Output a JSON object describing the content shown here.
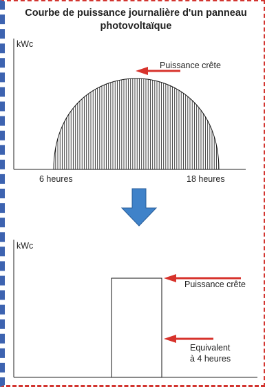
{
  "title": "Courbe de puissance journalière d'un panneau photovoltaïque",
  "chart_top": {
    "y_unit_label": "kWc",
    "peak_label": "Puissance crête",
    "x_start_label": "6 heures",
    "x_end_label": "18 heures"
  },
  "chart_bottom": {
    "y_unit_label": "kWc",
    "peak_label": "Puissance crête",
    "equivalent_label_line1": "Equivalent",
    "equivalent_label_line2": "à 4 heures"
  },
  "colors": {
    "arrow_red": "#d7332c",
    "down_arrow_blue": "#3f82c9",
    "frame_red": "#d2342f",
    "frame_blue": "#3d63b0"
  },
  "icons": {
    "transition": "down-arrow-icon"
  }
}
